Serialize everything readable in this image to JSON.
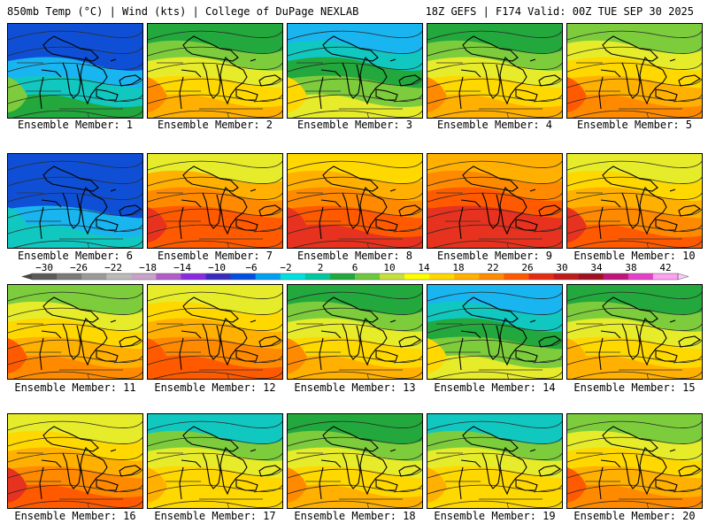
{
  "header": {
    "title_left": "850mb Temp (°C) | Wind (kts) | College of DuPage NEXLAB",
    "title_right": "18Z GEFS | F174 Valid: 00Z TUE SEP 30 2025"
  },
  "panel_label_prefix": "Ensemble Member: ",
  "members": [
    {
      "member": "1",
      "warmth": 0.25
    },
    {
      "member": "2",
      "warmth": 0.62
    },
    {
      "member": "3",
      "warmth": 0.45
    },
    {
      "member": "4",
      "warmth": 0.62
    },
    {
      "member": "5",
      "warmth": 0.68
    },
    {
      "member": "6",
      "warmth": 0.12
    },
    {
      "member": "7",
      "warmth": 0.82
    },
    {
      "member": "8",
      "warmth": 0.86
    },
    {
      "member": "9",
      "warmth": 0.92
    },
    {
      "member": "10",
      "warmth": 0.78
    },
    {
      "member": "11",
      "warmth": 0.7
    },
    {
      "member": "12",
      "warmth": 0.75
    },
    {
      "member": "13",
      "warmth": 0.62
    },
    {
      "member": "14",
      "warmth": 0.42
    },
    {
      "member": "15",
      "warmth": 0.58
    },
    {
      "member": "16",
      "warmth": 0.78
    },
    {
      "member": "17",
      "warmth": 0.55
    },
    {
      "member": "18",
      "warmth": 0.6
    },
    {
      "member": "19",
      "warmth": 0.55
    },
    {
      "member": "20",
      "warmth": 0.7
    }
  ],
  "colorbar": {
    "tick_labels": [
      "−30",
      "−26",
      "−22",
      "−18",
      "−14",
      "−10",
      "−6",
      "−2",
      "2",
      "6",
      "10",
      "14",
      "18",
      "22",
      "26",
      "30",
      "34",
      "38",
      "42"
    ],
    "colors": [
      "#5a5a5a",
      "#7a7a7a",
      "#9a9a9a",
      "#bababa",
      "#c8a2c8",
      "#b45cc8",
      "#8a2be2",
      "#3a2bbf",
      "#0050e0",
      "#00a0f0",
      "#00e0e0",
      "#00c8a0",
      "#22a83c",
      "#6cc83c",
      "#c8e03c",
      "#ffff00",
      "#ffd800",
      "#ffb000",
      "#ff8c00",
      "#ff5a00",
      "#e62b14",
      "#c01a1a",
      "#a01020",
      "#c01478",
      "#e640c8",
      "#ffa0f0"
    ]
  }
}
